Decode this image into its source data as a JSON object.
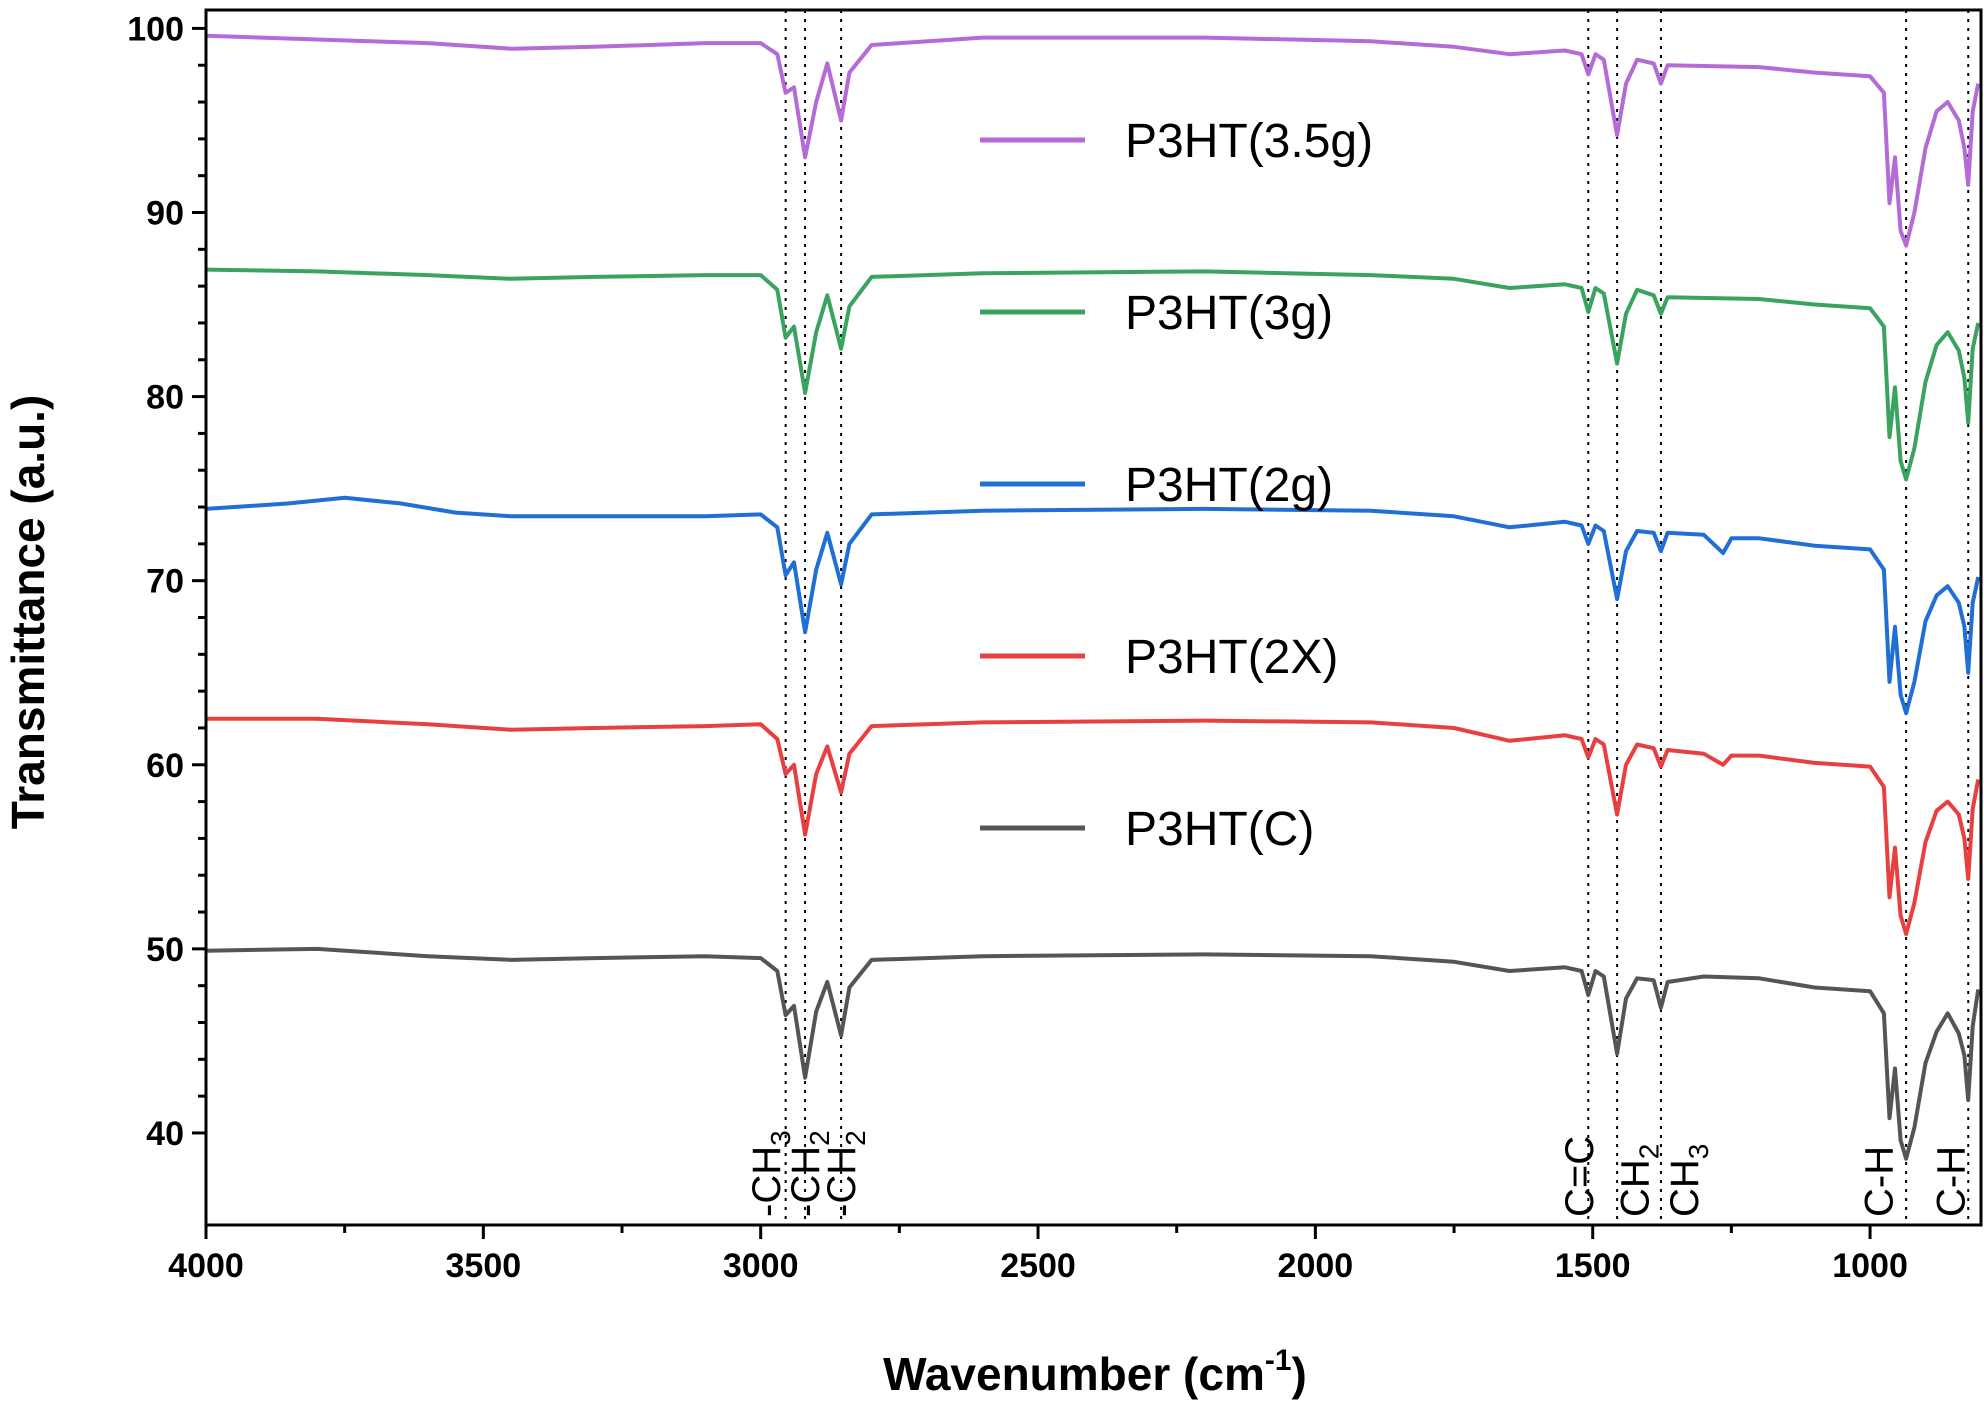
{
  "chart_data": {
    "type": "line",
    "title": "",
    "xlabel": "Wavenumber (cm",
    "xlabel_sup": "-1",
    "xlabel_end": ")",
    "ylabel": "Transmittance (a.u.)",
    "xlim": [
      4000,
      800
    ],
    "ylim": [
      35,
      101
    ],
    "x_reversed": true,
    "x_ticks": [
      4000,
      3500,
      3000,
      2500,
      2000,
      1500,
      1000
    ],
    "x_tick_labels": [
      "4000",
      "3500",
      "3000",
      "2500",
      "2000",
      "1500",
      "1000"
    ],
    "y_ticks": [
      40,
      50,
      60,
      70,
      80,
      90,
      100
    ],
    "y_tick_labels": [
      "40",
      "50",
      "60",
      "70",
      "80",
      "90",
      "100"
    ],
    "grid": false,
    "legend_placement": "center-right",
    "guide_lines_x": [
      2955,
      2920,
      2855,
      1508,
      1456,
      1377,
      935,
      823
    ],
    "annotations": [
      {
        "x": 2990,
        "text": "-CH",
        "sub": "3"
      },
      {
        "x": 2920,
        "text": "-CH",
        "sub": "2"
      },
      {
        "x": 2855,
        "text": "-CH",
        "sub": "2"
      },
      {
        "x": 1525,
        "text": "C=C",
        "sub": ""
      },
      {
        "x": 1425,
        "text": "CH",
        "sub": "2"
      },
      {
        "x": 1335,
        "text": "CH",
        "sub": "3"
      },
      {
        "x": 985,
        "text": "C-H",
        "sub": ""
      },
      {
        "x": 855,
        "text": "C-H",
        "sub": ""
      }
    ],
    "series": [
      {
        "name": "P3HT(3.5g)",
        "color": "#b56bd6",
        "points": [
          [
            4000,
            99.6
          ],
          [
            3800,
            99.4
          ],
          [
            3600,
            99.2
          ],
          [
            3450,
            98.9
          ],
          [
            3300,
            99.0
          ],
          [
            3100,
            99.2
          ],
          [
            3000,
            99.2
          ],
          [
            2970,
            98.6
          ],
          [
            2955,
            96.5
          ],
          [
            2940,
            96.8
          ],
          [
            2920,
            93.0
          ],
          [
            2900,
            96.0
          ],
          [
            2880,
            98.1
          ],
          [
            2855,
            95.0
          ],
          [
            2840,
            97.6
          ],
          [
            2800,
            99.1
          ],
          [
            2600,
            99.5
          ],
          [
            2200,
            99.5
          ],
          [
            1900,
            99.3
          ],
          [
            1750,
            99.0
          ],
          [
            1650,
            98.6
          ],
          [
            1550,
            98.8
          ],
          [
            1520,
            98.6
          ],
          [
            1508,
            97.5
          ],
          [
            1495,
            98.6
          ],
          [
            1480,
            98.3
          ],
          [
            1456,
            94.2
          ],
          [
            1440,
            97.0
          ],
          [
            1420,
            98.3
          ],
          [
            1390,
            98.1
          ],
          [
            1377,
            97.0
          ],
          [
            1365,
            98.0
          ],
          [
            1200,
            97.9
          ],
          [
            1100,
            97.6
          ],
          [
            1000,
            97.4
          ],
          [
            975,
            96.5
          ],
          [
            965,
            90.5
          ],
          [
            955,
            93.0
          ],
          [
            945,
            89.0
          ],
          [
            935,
            88.2
          ],
          [
            920,
            90.0
          ],
          [
            900,
            93.5
          ],
          [
            880,
            95.5
          ],
          [
            860,
            96.0
          ],
          [
            840,
            95.0
          ],
          [
            830,
            93.5
          ],
          [
            823,
            91.5
          ],
          [
            815,
            95.5
          ],
          [
            805,
            97.0
          ]
        ]
      },
      {
        "name": "P3HT(3g)",
        "color": "#3aa35f",
        "points": [
          [
            4000,
            86.9
          ],
          [
            3800,
            86.8
          ],
          [
            3600,
            86.6
          ],
          [
            3450,
            86.4
          ],
          [
            3300,
            86.5
          ],
          [
            3100,
            86.6
          ],
          [
            3000,
            86.6
          ],
          [
            2970,
            85.8
          ],
          [
            2955,
            83.2
          ],
          [
            2940,
            83.8
          ],
          [
            2920,
            80.2
          ],
          [
            2900,
            83.5
          ],
          [
            2880,
            85.5
          ],
          [
            2855,
            82.6
          ],
          [
            2840,
            84.9
          ],
          [
            2800,
            86.5
          ],
          [
            2600,
            86.7
          ],
          [
            2200,
            86.8
          ],
          [
            1900,
            86.6
          ],
          [
            1750,
            86.4
          ],
          [
            1650,
            85.9
          ],
          [
            1550,
            86.1
          ],
          [
            1520,
            85.9
          ],
          [
            1508,
            84.6
          ],
          [
            1495,
            85.9
          ],
          [
            1480,
            85.6
          ],
          [
            1456,
            81.8
          ],
          [
            1440,
            84.5
          ],
          [
            1420,
            85.8
          ],
          [
            1390,
            85.5
          ],
          [
            1377,
            84.5
          ],
          [
            1365,
            85.4
          ],
          [
            1200,
            85.3
          ],
          [
            1100,
            85.0
          ],
          [
            1000,
            84.8
          ],
          [
            975,
            83.8
          ],
          [
            965,
            77.8
          ],
          [
            955,
            80.5
          ],
          [
            945,
            76.5
          ],
          [
            935,
            75.5
          ],
          [
            920,
            77.2
          ],
          [
            900,
            80.8
          ],
          [
            880,
            82.8
          ],
          [
            860,
            83.5
          ],
          [
            840,
            82.5
          ],
          [
            830,
            81.0
          ],
          [
            823,
            78.6
          ],
          [
            815,
            82.6
          ],
          [
            805,
            84.0
          ]
        ]
      },
      {
        "name": "P3HT(2g)",
        "color": "#1f6fd6",
        "points": [
          [
            4000,
            73.9
          ],
          [
            3850,
            74.2
          ],
          [
            3750,
            74.5
          ],
          [
            3650,
            74.2
          ],
          [
            3550,
            73.7
          ],
          [
            3450,
            73.5
          ],
          [
            3300,
            73.5
          ],
          [
            3100,
            73.5
          ],
          [
            3000,
            73.6
          ],
          [
            2970,
            72.9
          ],
          [
            2955,
            70.3
          ],
          [
            2940,
            71.0
          ],
          [
            2920,
            67.2
          ],
          [
            2900,
            70.6
          ],
          [
            2880,
            72.6
          ],
          [
            2855,
            69.8
          ],
          [
            2840,
            72.0
          ],
          [
            2800,
            73.6
          ],
          [
            2600,
            73.8
          ],
          [
            2200,
            73.9
          ],
          [
            1900,
            73.8
          ],
          [
            1750,
            73.5
          ],
          [
            1650,
            72.9
          ],
          [
            1550,
            73.2
          ],
          [
            1520,
            73.0
          ],
          [
            1508,
            72.0
          ],
          [
            1495,
            73.0
          ],
          [
            1480,
            72.7
          ],
          [
            1456,
            69.0
          ],
          [
            1440,
            71.6
          ],
          [
            1420,
            72.7
          ],
          [
            1390,
            72.6
          ],
          [
            1377,
            71.6
          ],
          [
            1365,
            72.6
          ],
          [
            1300,
            72.5
          ],
          [
            1265,
            71.5
          ],
          [
            1250,
            72.3
          ],
          [
            1200,
            72.3
          ],
          [
            1100,
            71.9
          ],
          [
            1000,
            71.7
          ],
          [
            975,
            70.6
          ],
          [
            965,
            64.5
          ],
          [
            955,
            67.5
          ],
          [
            945,
            63.8
          ],
          [
            935,
            62.8
          ],
          [
            920,
            64.5
          ],
          [
            900,
            67.8
          ],
          [
            880,
            69.2
          ],
          [
            860,
            69.7
          ],
          [
            840,
            68.8
          ],
          [
            830,
            67.5
          ],
          [
            823,
            65.0
          ],
          [
            815,
            68.8
          ],
          [
            805,
            70.2
          ]
        ]
      },
      {
        "name": "P3HT(2X)",
        "color": "#e84040",
        "points": [
          [
            4000,
            62.5
          ],
          [
            3800,
            62.5
          ],
          [
            3600,
            62.2
          ],
          [
            3450,
            61.9
          ],
          [
            3300,
            62.0
          ],
          [
            3100,
            62.1
          ],
          [
            3000,
            62.2
          ],
          [
            2970,
            61.4
          ],
          [
            2955,
            59.5
          ],
          [
            2940,
            60.0
          ],
          [
            2920,
            56.2
          ],
          [
            2900,
            59.5
          ],
          [
            2880,
            61.0
          ],
          [
            2855,
            58.5
          ],
          [
            2840,
            60.6
          ],
          [
            2800,
            62.1
          ],
          [
            2600,
            62.3
          ],
          [
            2200,
            62.4
          ],
          [
            1900,
            62.3
          ],
          [
            1750,
            62.0
          ],
          [
            1650,
            61.3
          ],
          [
            1550,
            61.6
          ],
          [
            1520,
            61.4
          ],
          [
            1508,
            60.4
          ],
          [
            1495,
            61.4
          ],
          [
            1480,
            61.1
          ],
          [
            1456,
            57.3
          ],
          [
            1440,
            60.0
          ],
          [
            1420,
            61.1
          ],
          [
            1390,
            60.9
          ],
          [
            1377,
            59.9
          ],
          [
            1365,
            60.8
          ],
          [
            1300,
            60.6
          ],
          [
            1265,
            60.0
          ],
          [
            1250,
            60.5
          ],
          [
            1200,
            60.5
          ],
          [
            1100,
            60.1
          ],
          [
            1000,
            59.9
          ],
          [
            975,
            58.8
          ],
          [
            965,
            52.8
          ],
          [
            955,
            55.5
          ],
          [
            945,
            51.8
          ],
          [
            935,
            50.8
          ],
          [
            920,
            52.5
          ],
          [
            900,
            55.8
          ],
          [
            880,
            57.5
          ],
          [
            860,
            58.0
          ],
          [
            840,
            57.3
          ],
          [
            830,
            56.0
          ],
          [
            823,
            53.8
          ],
          [
            815,
            57.6
          ],
          [
            805,
            59.2
          ]
        ]
      },
      {
        "name": "P3HT(C)",
        "color": "#555555",
        "points": [
          [
            4000,
            49.9
          ],
          [
            3800,
            50.0
          ],
          [
            3600,
            49.6
          ],
          [
            3450,
            49.4
          ],
          [
            3300,
            49.5
          ],
          [
            3100,
            49.6
          ],
          [
            3000,
            49.5
          ],
          [
            2970,
            48.8
          ],
          [
            2955,
            46.4
          ],
          [
            2940,
            46.9
          ],
          [
            2920,
            43.0
          ],
          [
            2900,
            46.6
          ],
          [
            2880,
            48.2
          ],
          [
            2855,
            45.3
          ],
          [
            2840,
            47.9
          ],
          [
            2800,
            49.4
          ],
          [
            2600,
            49.6
          ],
          [
            2200,
            49.7
          ],
          [
            1900,
            49.6
          ],
          [
            1750,
            49.3
          ],
          [
            1650,
            48.8
          ],
          [
            1550,
            49.0
          ],
          [
            1520,
            48.8
          ],
          [
            1508,
            47.5
          ],
          [
            1495,
            48.8
          ],
          [
            1480,
            48.5
          ],
          [
            1456,
            44.3
          ],
          [
            1440,
            47.3
          ],
          [
            1420,
            48.4
          ],
          [
            1390,
            48.3
          ],
          [
            1377,
            46.8
          ],
          [
            1365,
            48.2
          ],
          [
            1300,
            48.5
          ],
          [
            1200,
            48.4
          ],
          [
            1100,
            47.9
          ],
          [
            1000,
            47.7
          ],
          [
            975,
            46.5
          ],
          [
            965,
            40.8
          ],
          [
            955,
            43.5
          ],
          [
            945,
            39.6
          ],
          [
            935,
            38.6
          ],
          [
            920,
            40.3
          ],
          [
            900,
            43.8
          ],
          [
            880,
            45.5
          ],
          [
            860,
            46.5
          ],
          [
            840,
            45.4
          ],
          [
            830,
            44.2
          ],
          [
            823,
            41.8
          ],
          [
            815,
            45.8
          ],
          [
            805,
            47.8
          ]
        ]
      }
    ]
  }
}
